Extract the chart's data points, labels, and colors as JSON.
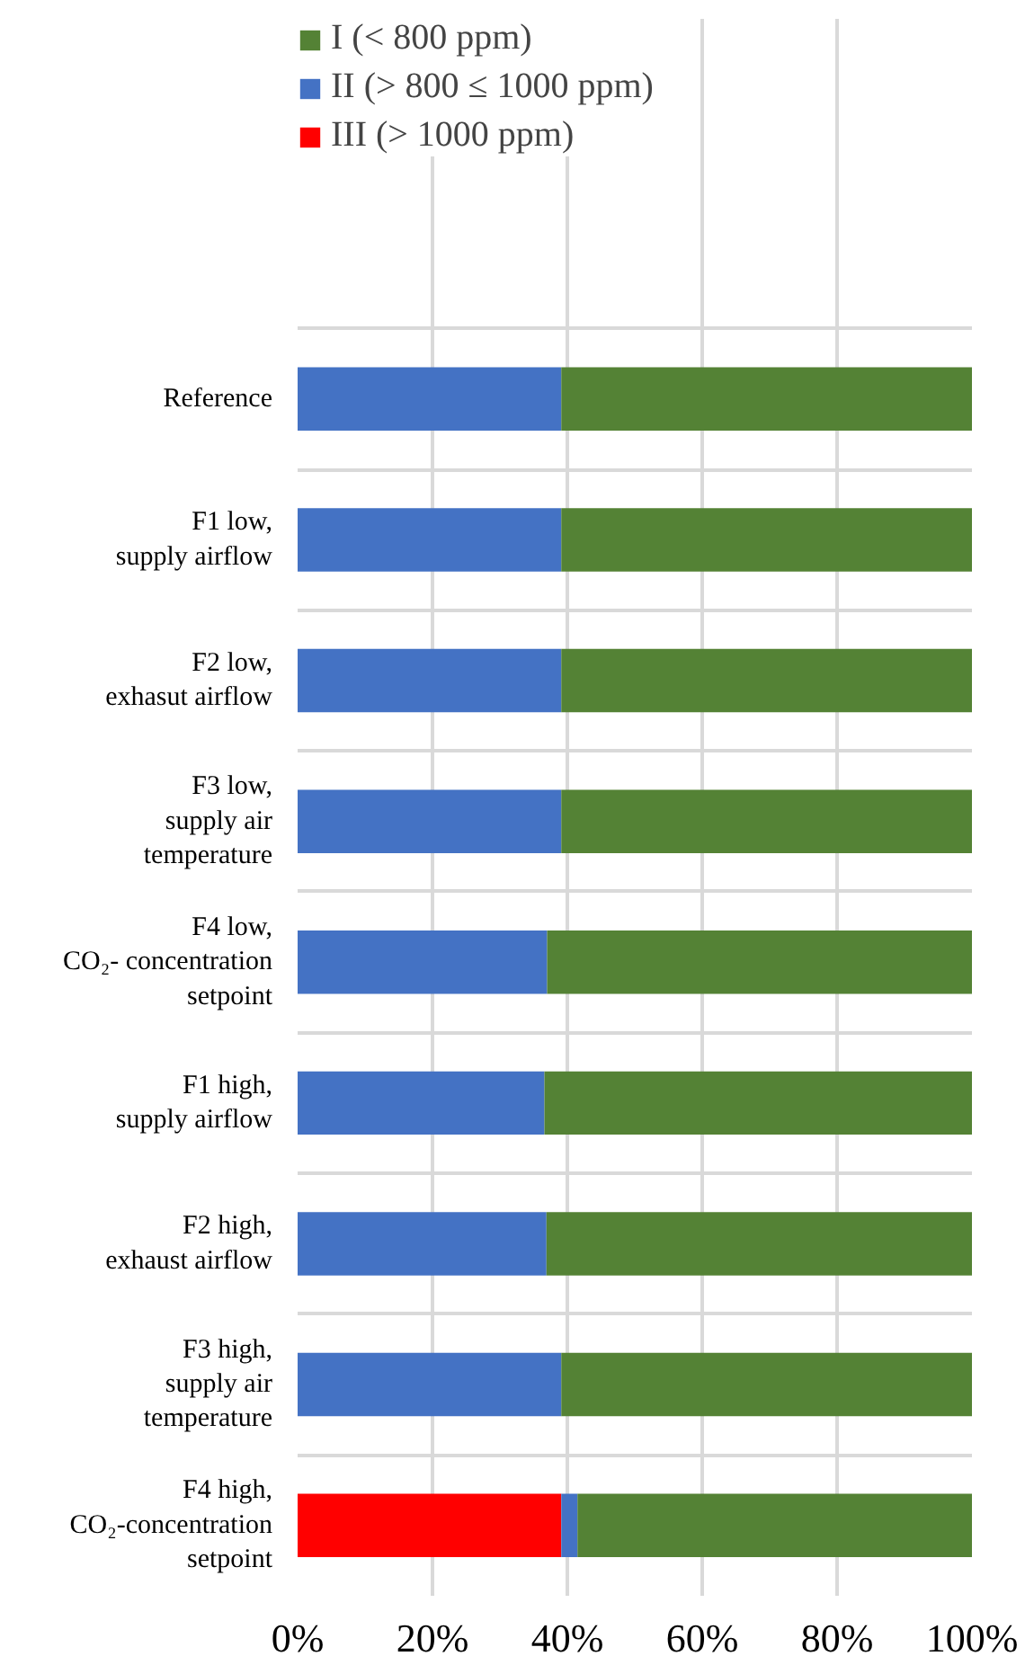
{
  "chart_data": {
    "type": "bar",
    "orientation": "horizontal",
    "stacked": true,
    "categories": [
      "Reference",
      "F1 low,\nsupply airflow",
      "F2 low,\nexhasut airflow",
      "F3 low,\nsupply air\ntemperature",
      "F4 low,\nCO₂- concentration\nsetpoint",
      "F1 high,\nsupply airflow",
      "F2 high,\nexhaust airflow",
      "F3 high,\nsupply air\ntemperature",
      "F4 high,\nCO₂-concentration\nsetpoint"
    ],
    "series": [
      {
        "name": "III (> 1000 ppm)",
        "color": "#ff0000",
        "values": [
          0,
          0,
          0,
          0,
          0,
          0,
          0,
          0,
          39.1
        ]
      },
      {
        "name": "II (> 800 ≤ 1000 ppm)",
        "color": "#4472c4",
        "values": [
          39.1,
          39.1,
          39.1,
          39.1,
          37.0,
          36.6,
          36.9,
          39.1,
          2.4
        ]
      },
      {
        "name": "I (< 800 ppm)",
        "color": "#548235",
        "values": [
          60.9,
          60.9,
          60.9,
          60.9,
          63.0,
          63.4,
          63.1,
          60.9,
          58.5
        ]
      }
    ],
    "xlim": [
      0,
      100
    ],
    "xticks": [
      {
        "value": 0,
        "label": "0%"
      },
      {
        "value": 20,
        "label": "20%"
      },
      {
        "value": 40,
        "label": "40%"
      },
      {
        "value": 60,
        "label": "60%"
      },
      {
        "value": 80,
        "label": "80%"
      },
      {
        "value": 100,
        "label": "100%"
      }
    ],
    "grid": true,
    "legend": "top"
  }
}
